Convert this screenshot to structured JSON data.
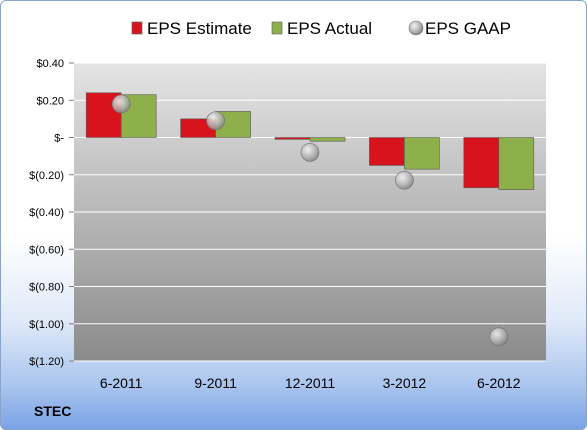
{
  "chart_data": {
    "type": "bar",
    "categories": [
      "6-2011",
      "9-2011",
      "12-2011",
      "3-2012",
      "6-2012"
    ],
    "series": [
      {
        "name": "EPS Estimate",
        "kind": "bar",
        "color": "#d7141e",
        "values": [
          0.24,
          0.1,
          -0.01,
          -0.15,
          -0.27
        ]
      },
      {
        "name": "EPS Actual",
        "kind": "bar",
        "color": "#8db04a",
        "values": [
          0.23,
          0.14,
          -0.02,
          -0.17,
          -0.28
        ]
      },
      {
        "name": "EPS GAAP",
        "kind": "marker",
        "color": "#b5b5b5",
        "values": [
          0.18,
          0.09,
          -0.08,
          -0.23,
          -1.07
        ]
      }
    ],
    "ylim": [
      -1.2,
      0.4
    ],
    "yticks": [
      0.4,
      0.2,
      0.0,
      -0.2,
      -0.4,
      -0.6,
      -0.8,
      -1.0,
      -1.2
    ],
    "ytick_labels": [
      "$0.40",
      "$0.20",
      "$-",
      "$(0.20)",
      "$(0.40)",
      "$(0.60)",
      "$(0.80)",
      "$(1.00)",
      "$(1.20)"
    ],
    "grid": true,
    "legend_position": "top"
  },
  "ticker": "STEC"
}
